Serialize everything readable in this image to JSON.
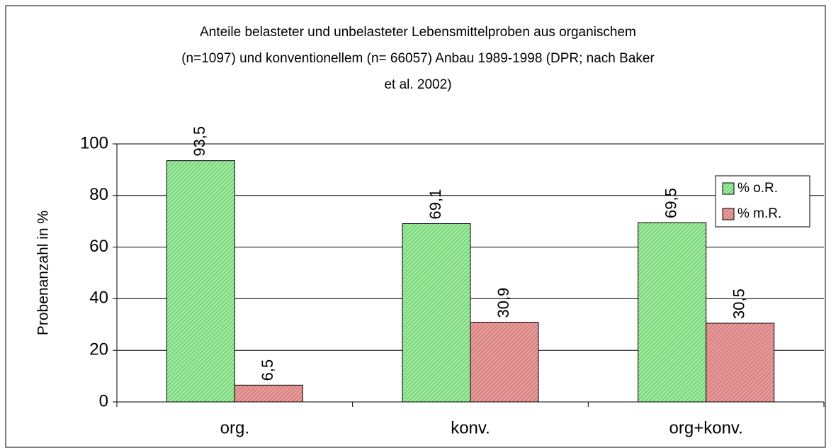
{
  "chart_data": {
    "type": "bar",
    "title": [
      "Anteile belasteter und unbelasteter Lebensmittelproben aus organischem",
      "(n=1097) und konventionellem (n= 66057) Anbau 1989-1998 (DPR; nach Baker",
      "et al. 2002)"
    ],
    "y_label": "Probenanzahl in %",
    "categories": [
      "org.",
      "konv.",
      "org+konv."
    ],
    "series": [
      {
        "name": "% o.R.",
        "color": "#99ee99",
        "values": [
          93.5,
          69.1,
          69.5
        ],
        "value_labels": [
          "93,5",
          "69,1",
          "69,5"
        ]
      },
      {
        "name": "% m.R.",
        "color": "#ee9999",
        "values": [
          6.5,
          30.9,
          30.5
        ],
        "value_labels": [
          "6,5",
          "30,9",
          "30,5"
        ]
      }
    ],
    "ylim": [
      0,
      100
    ],
    "yticks": [
      0,
      20,
      40,
      60,
      80,
      100
    ],
    "grid": true,
    "legend": "right"
  }
}
